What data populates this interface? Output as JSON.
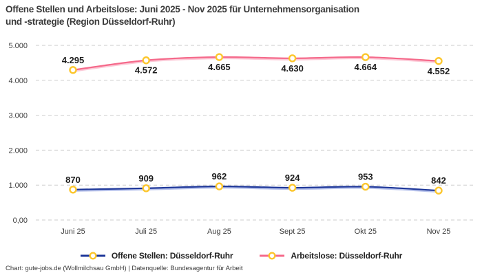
{
  "header": {
    "title_lines": [
      "Offene Stellen und Arbeitslose: Juni 2025 - Nov 2025 für Unternehmensorganisation",
      "und -strategie (Region Düsseldorf-Ruhr)"
    ]
  },
  "footer": {
    "attribution": "Chart: gute-jobs.de (Wollmilchsau GmbH) | Datenquelle: Bundesagentur für Arbeit"
  },
  "chart_data": {
    "type": "line",
    "title": "Offene Stellen und Arbeitslose: Juni 2025 - Nov 2025 für Unternehmensorganisation und -strategie (Region Düsseldorf-Ruhr)",
    "categories": [
      "Juni 25",
      "Juli 25",
      "Aug 25",
      "Sept 25",
      "Okt 25",
      "Nov 25"
    ],
    "series": [
      {
        "name": "Offene Stellen: Düsseldorf-Ruhr",
        "values": [
          870,
          909,
          962,
          924,
          953,
          842
        ],
        "labels": [
          "870",
          "909",
          "962",
          "924",
          "953",
          "842"
        ],
        "label_position": [
          "above",
          "above",
          "above",
          "above",
          "above",
          "above"
        ],
        "color": "#1e3799",
        "shadow_color": "rgba(125,145,220,0.55)"
      },
      {
        "name": "Arbeitslose: Düsseldorf-Ruhr",
        "values": [
          4295,
          4572,
          4665,
          4630,
          4664,
          4552
        ],
        "labels": [
          "4.295",
          "4.572",
          "4.665",
          "4.630",
          "4.664",
          "4.552"
        ],
        "label_position": [
          "above",
          "below",
          "below",
          "below",
          "below",
          "below"
        ],
        "color": "#f5698a",
        "shadow_color": "rgba(250,165,188,0.6)"
      }
    ],
    "yticks": [
      {
        "value": 0,
        "label": "0,00"
      },
      {
        "value": 1000,
        "label": "1.000"
      },
      {
        "value": 2000,
        "label": "2.000"
      },
      {
        "value": 3000,
        "label": "3.000"
      },
      {
        "value": 4000,
        "label": "4.000"
      },
      {
        "value": 5000,
        "label": "5.000"
      }
    ],
    "ylim": [
      0,
      5000
    ],
    "grid": "dashed-horizontal",
    "grid_color": "#cbcbcb",
    "tick_label_color": "#3c3c3c",
    "data_label_color": "#1c1c1c",
    "legend_position": "bottom",
    "marker": {
      "fill": "#ffffff",
      "ring": "#fcc62c"
    }
  }
}
